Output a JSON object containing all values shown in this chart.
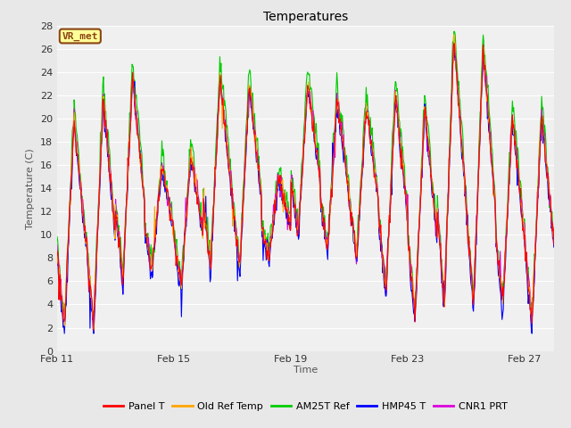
{
  "title": "Temperatures",
  "xlabel": "Time",
  "ylabel": "Temperature (C)",
  "ylim": [
    0,
    28
  ],
  "yticks": [
    0,
    2,
    4,
    6,
    8,
    10,
    12,
    14,
    16,
    18,
    20,
    22,
    24,
    26,
    28
  ],
  "xtick_labels": [
    "Feb 11",
    "Feb 15",
    "Feb 19",
    "Feb 23",
    "Feb 27"
  ],
  "xtick_positions": [
    0,
    4,
    8,
    12,
    16
  ],
  "series_colors": {
    "Panel T": "#ff0000",
    "Old Ref Temp": "#ffa500",
    "AM25T Ref": "#00cc00",
    "HMP45 T": "#0000ff",
    "CNR1 PRT": "#dd00dd"
  },
  "annotation_text": "VR_met",
  "annotation_color": "#8B4513",
  "annotation_bg": "#ffff99",
  "bg_color": "#e8e8e8",
  "plot_bg": "#f0f0f0",
  "linewidth": 0.8,
  "fig_width": 6.4,
  "fig_height": 4.8,
  "dpi": 100
}
